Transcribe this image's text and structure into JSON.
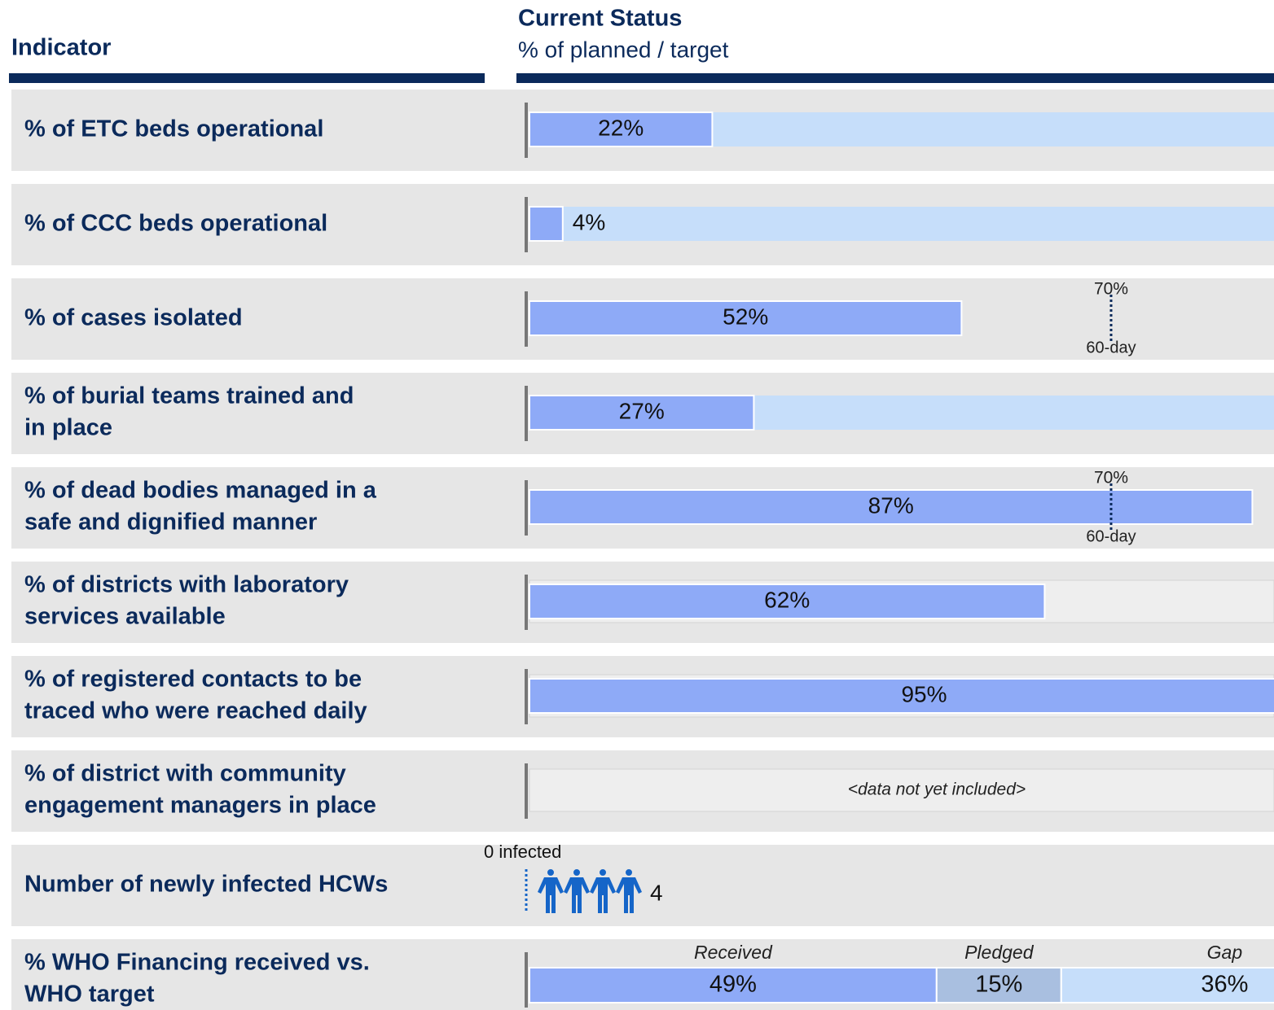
{
  "header": {
    "indicator": "Indicator",
    "status_title": "Current Status",
    "status_subtitle": "% of planned / target"
  },
  "xlim": [
    0,
    100
  ],
  "colors": {
    "bar": "#8eaaf7",
    "track": "#c6defa",
    "row": "#e6e6e6",
    "text": "#0b2a5b",
    "icon": "#1565c8"
  },
  "rows": [
    {
      "label": [
        "% of ETC beds operational"
      ],
      "value": 22,
      "value_label": "22%",
      "track": true
    },
    {
      "label": [
        "% of CCC beds operational"
      ],
      "value": 4,
      "value_label": "4%",
      "track": true
    },
    {
      "label": [
        "% of cases isolated"
      ],
      "value": 52,
      "value_label": "52%",
      "target": {
        "value": 70,
        "label": "70%",
        "note": "60-day"
      }
    },
    {
      "label": [
        "% of burial teams trained and",
        "in place"
      ],
      "value": 27,
      "value_label": "27%",
      "track": true
    },
    {
      "label": [
        "% of dead bodies managed in a",
        "safe and dignified manner"
      ],
      "value": 87,
      "value_label": "87%",
      "target": {
        "value": 70,
        "label": "70%",
        "note": "60-day"
      }
    },
    {
      "label": [
        "% of districts with laboratory",
        "services available"
      ],
      "value": 62,
      "value_label": "62%",
      "strip": true
    },
    {
      "label": [
        "% of registered contacts to be",
        "traced who were reached daily"
      ],
      "value": 95,
      "value_label": "95%",
      "strip": true
    },
    {
      "label": [
        "% of district with community",
        "engagement managers in place"
      ],
      "note": "<data not yet included>",
      "strip": true
    },
    {
      "label": [
        "Number of newly infected HCWs"
      ],
      "baseline_label": "0 infected",
      "count": 4
    },
    {
      "label": [
        "% WHO Financing received vs.",
        "WHO target"
      ],
      "segments": [
        {
          "name": "Received",
          "value": 49,
          "value_label": "49%",
          "color": "#8eaaf7"
        },
        {
          "name": "Pledged",
          "value": 15,
          "value_label": "15%",
          "color": "#a9bfe0"
        },
        {
          "name": "Gap",
          "value": 36,
          "value_label": "36%",
          "color": "#c6defa"
        }
      ]
    }
  ]
}
